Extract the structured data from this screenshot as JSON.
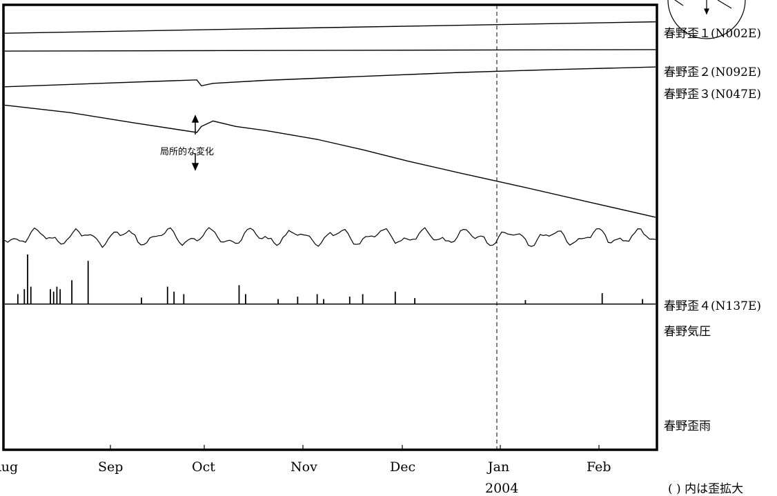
{
  "chart_data": {
    "type": "line",
    "x_axis": {
      "months": [
        "Aug",
        "Sep",
        "Oct",
        "Nov",
        "Dec",
        "Jan",
        "Feb"
      ],
      "year_label": "2004",
      "year_under": "Jan"
    },
    "series": [
      {
        "name": "春野歪１(N002E)",
        "kind": "straight",
        "y_norm": [
          0.067,
          0.044
        ]
      },
      {
        "name": "春野歪２(N092E)",
        "kind": "straight",
        "y_norm": [
          0.103,
          0.1
        ]
      },
      {
        "name": "春野歪３(N047E)",
        "kind": "curve",
        "points": [
          [
            0,
            0.175
          ],
          [
            0.295,
            0.161
          ],
          [
            0.302,
            0.173
          ],
          [
            0.32,
            0.168
          ],
          [
            0.4,
            0.162
          ],
          [
            0.55,
            0.154
          ],
          [
            0.7,
            0.146
          ],
          [
            0.85,
            0.14
          ],
          [
            1,
            0.135
          ]
        ]
      },
      {
        "name": "春野歪４(N137E)",
        "kind": "curve",
        "points": [
          [
            0,
            0.212
          ],
          [
            0.1,
            0.227
          ],
          [
            0.2,
            0.248
          ],
          [
            0.295,
            0.267
          ],
          [
            0.302,
            0.255
          ],
          [
            0.32,
            0.244
          ],
          [
            0.355,
            0.255
          ],
          [
            0.4,
            0.263
          ],
          [
            0.48,
            0.281
          ],
          [
            0.55,
            0.302
          ],
          [
            0.62,
            0.325
          ],
          [
            0.7,
            0.349
          ],
          [
            0.8,
            0.378
          ],
          [
            0.9,
            0.408
          ],
          [
            1,
            0.438
          ]
        ]
      },
      {
        "name": "春野気圧",
        "kind": "noise",
        "base": 0.478,
        "amplitude": 0.02
      },
      {
        "name": "春野歪雨",
        "kind": "bars",
        "baseline": 0.613
      }
    ],
    "annotation": "局所的な変化",
    "footnote": "(  ) 内は歪拡大"
  }
}
